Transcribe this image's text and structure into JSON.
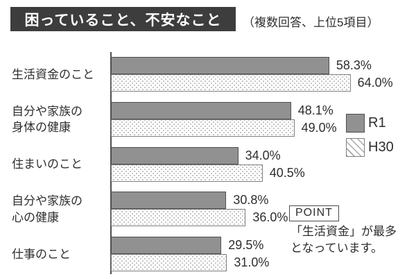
{
  "header": {
    "title": "困っていること、不安なこと",
    "subtitle": "（複数回答、上位5項目）"
  },
  "point": {
    "badge": "POINT",
    "text": "「生活資金」が最多\nとなっています。"
  },
  "colors": {
    "bar_r1": "#919191",
    "bar_border": "#4f4f4f",
    "h30_dot": "#bdbdbd",
    "h30_border": "#7f7f7f",
    "title_bg": "#3d3d3d",
    "title_fg": "#ffffff",
    "text": "#2e2e2e"
  },
  "chart_data": {
    "type": "bar",
    "orientation": "horizontal",
    "title": "困っていること、不安なこと",
    "subtitle": "（複数回答、上位5項目）",
    "categories": [
      "生活資金のこと",
      "自分や家族の\n身体の健康",
      "住まいのこと",
      "自分や家族の\n心の健康",
      "仕事のこと"
    ],
    "series": [
      {
        "name": "R1",
        "values": [
          58.3,
          48.1,
          34.0,
          30.8,
          29.5
        ]
      },
      {
        "name": "H30",
        "values": [
          64.0,
          49.0,
          40.5,
          36.0,
          31.0
        ]
      }
    ],
    "value_suffix": "%",
    "xlim": [
      0,
      70
    ],
    "grid": false,
    "legend_position": "right",
    "data_labels": true
  }
}
